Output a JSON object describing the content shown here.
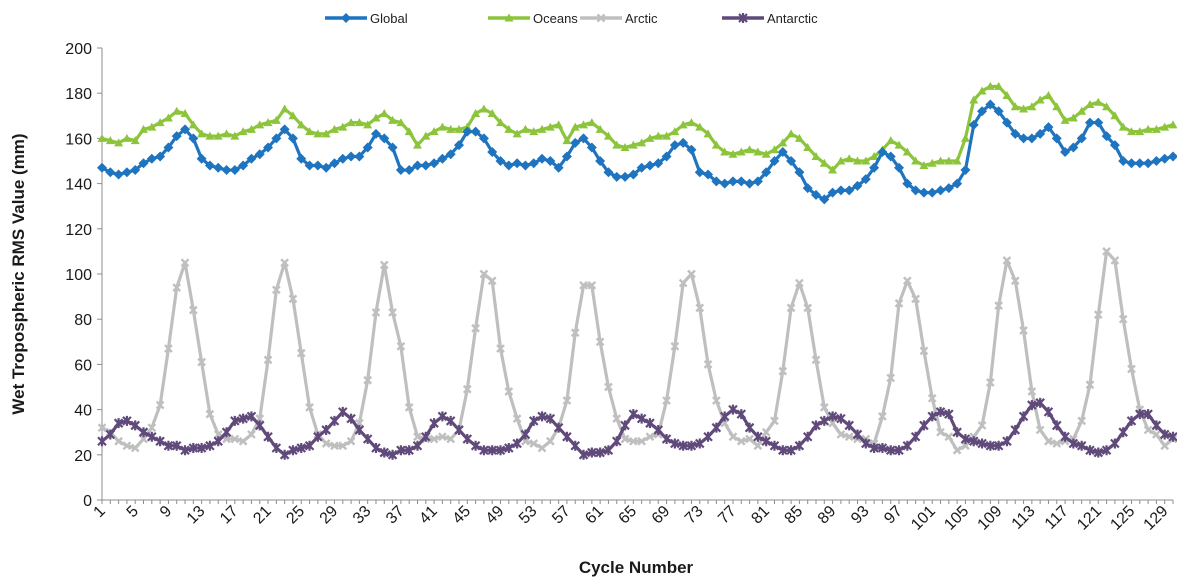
{
  "chart_data": {
    "type": "line",
    "xlabel": "Cycle Number",
    "ylabel": "Wet Tropospheric RMS Value (mm)",
    "ylim": [
      0,
      200
    ],
    "yticks": [
      0,
      20,
      40,
      60,
      80,
      100,
      120,
      140,
      160,
      180,
      200
    ],
    "xlim": [
      1,
      130
    ],
    "xticks": [
      1,
      5,
      9,
      13,
      17,
      21,
      25,
      29,
      33,
      37,
      41,
      45,
      49,
      53,
      57,
      61,
      65,
      69,
      73,
      77,
      81,
      85,
      89,
      93,
      97,
      101,
      105,
      109,
      113,
      117,
      121,
      125,
      129
    ],
    "legend_position": "top",
    "grid": false,
    "x": [
      1,
      2,
      3,
      4,
      5,
      6,
      7,
      8,
      9,
      10,
      11,
      12,
      13,
      14,
      15,
      16,
      17,
      18,
      19,
      20,
      21,
      22,
      23,
      24,
      25,
      26,
      27,
      28,
      29,
      30,
      31,
      32,
      33,
      34,
      35,
      36,
      37,
      38,
      39,
      40,
      41,
      42,
      43,
      44,
      45,
      46,
      47,
      48,
      49,
      50,
      51,
      52,
      53,
      54,
      55,
      56,
      57,
      58,
      59,
      60,
      61,
      62,
      63,
      64,
      65,
      66,
      67,
      68,
      69,
      70,
      71,
      72,
      73,
      74,
      75,
      76,
      77,
      78,
      79,
      80,
      81,
      82,
      83,
      84,
      85,
      86,
      87,
      88,
      89,
      90,
      91,
      92,
      93,
      94,
      95,
      96,
      97,
      98,
      99,
      100,
      101,
      102,
      103,
      104,
      105,
      106,
      107,
      108,
      109,
      110,
      111,
      112,
      113,
      114,
      115,
      116,
      117,
      118,
      119,
      120,
      121,
      122,
      123,
      124,
      125,
      126,
      127,
      128,
      129,
      130
    ],
    "series": [
      {
        "name": "Global",
        "color": "#1f74c0",
        "marker": "diamond",
        "values": [
          147,
          145,
          144,
          145,
          146,
          149,
          151,
          152,
          156,
          161,
          164,
          160,
          151,
          148,
          147,
          146,
          146,
          148,
          151,
          153,
          156,
          160,
          164,
          160,
          151,
          148,
          148,
          147,
          149,
          151,
          152,
          152,
          156,
          162,
          160,
          156,
          146,
          146,
          148,
          148,
          149,
          151,
          153,
          157,
          163,
          163,
          160,
          154,
          150,
          148,
          149,
          148,
          149,
          151,
          150,
          147,
          152,
          158,
          160,
          156,
          150,
          145,
          143,
          143,
          144,
          147,
          148,
          149,
          152,
          157,
          158,
          155,
          145,
          144,
          141,
          140,
          141,
          141,
          140,
          141,
          145,
          150,
          154,
          150,
          145,
          138,
          135,
          133,
          136,
          137,
          137,
          139,
          142,
          147,
          154,
          152,
          147,
          140,
          137,
          136,
          136,
          137,
          138,
          140,
          146,
          166,
          172,
          175,
          172,
          167,
          162,
          160,
          160,
          162,
          165,
          160,
          154,
          156,
          160,
          167,
          167,
          161,
          157,
          150,
          149,
          149,
          149,
          150,
          151,
          152
        ]
      },
      {
        "name": "Oceans",
        "color": "#8cc43c",
        "marker": "triangle",
        "values": [
          160,
          159,
          158,
          160,
          159,
          164,
          165,
          167,
          169,
          172,
          171,
          166,
          162,
          161,
          161,
          162,
          161,
          163,
          164,
          166,
          167,
          168,
          173,
          170,
          166,
          163,
          162,
          162,
          164,
          165,
          167,
          167,
          166,
          169,
          171,
          168,
          167,
          163,
          157,
          161,
          163,
          165,
          164,
          164,
          165,
          171,
          173,
          171,
          167,
          164,
          162,
          164,
          163,
          164,
          165,
          166,
          159,
          165,
          166,
          167,
          164,
          161,
          157,
          156,
          157,
          158,
          160,
          161,
          161,
          163,
          166,
          167,
          165,
          162,
          157,
          154,
          153,
          154,
          155,
          154,
          153,
          155,
          158,
          162,
          160,
          156,
          152,
          149,
          146,
          150,
          151,
          150,
          150,
          152,
          155,
          159,
          157,
          154,
          150,
          148,
          149,
          150,
          150,
          150,
          160,
          177,
          181,
          183,
          183,
          179,
          174,
          173,
          174,
          177,
          179,
          174,
          168,
          169,
          172,
          175,
          176,
          174,
          170,
          165,
          163,
          163,
          164,
          164,
          165,
          166
        ]
      },
      {
        "name": "Arctic",
        "color": "#bfbfbf",
        "marker": "x",
        "values": [
          32,
          30,
          26,
          24,
          23,
          27,
          32,
          42,
          67,
          94,
          105,
          84,
          61,
          38,
          29,
          27,
          27,
          26,
          29,
          36,
          62,
          93,
          105,
          89,
          65,
          41,
          29,
          25,
          24,
          24,
          26,
          34,
          53,
          83,
          104,
          83,
          68,
          41,
          28,
          27,
          27,
          28,
          27,
          31,
          49,
          76,
          100,
          97,
          67,
          48,
          36,
          26,
          25,
          23,
          26,
          32,
          44,
          74,
          95,
          95,
          70,
          50,
          36,
          27,
          26,
          26,
          28,
          29,
          44,
          68,
          96,
          100,
          85,
          60,
          44,
          34,
          28,
          26,
          27,
          24,
          30,
          35,
          57,
          85,
          96,
          85,
          62,
          41,
          34,
          29,
          28,
          27,
          27,
          25,
          37,
          54,
          87,
          97,
          89,
          66,
          45,
          30,
          28,
          22,
          24,
          28,
          33,
          52,
          86,
          106,
          97,
          75,
          48,
          31,
          26,
          25,
          26,
          27,
          35,
          51,
          82,
          110,
          106,
          80,
          58,
          40,
          31,
          29,
          24,
          27
        ]
      },
      {
        "name": "Antarctic",
        "color": "#604a7b",
        "marker": "star",
        "values": [
          26,
          29,
          34,
          35,
          33,
          30,
          28,
          26,
          24,
          24,
          22,
          23,
          23,
          24,
          26,
          30,
          35,
          36,
          37,
          33,
          28,
          23,
          20,
          22,
          23,
          24,
          28,
          31,
          35,
          39,
          36,
          31,
          27,
          23,
          21,
          20,
          22,
          22,
          24,
          28,
          34,
          37,
          35,
          31,
          27,
          24,
          22,
          22,
          22,
          23,
          25,
          29,
          35,
          37,
          36,
          32,
          28,
          24,
          20,
          21,
          21,
          22,
          26,
          33,
          38,
          36,
          34,
          31,
          27,
          25,
          24,
          24,
          25,
          28,
          32,
          37,
          40,
          38,
          32,
          28,
          26,
          24,
          22,
          22,
          24,
          28,
          33,
          35,
          37,
          36,
          33,
          29,
          25,
          23,
          23,
          22,
          22,
          24,
          28,
          33,
          37,
          39,
          38,
          30,
          27,
          26,
          25,
          24,
          24,
          26,
          31,
          37,
          42,
          43,
          39,
          33,
          28,
          25,
          24,
          22,
          21,
          22,
          25,
          30,
          35,
          38,
          38,
          33,
          29,
          28
        ]
      }
    ]
  }
}
